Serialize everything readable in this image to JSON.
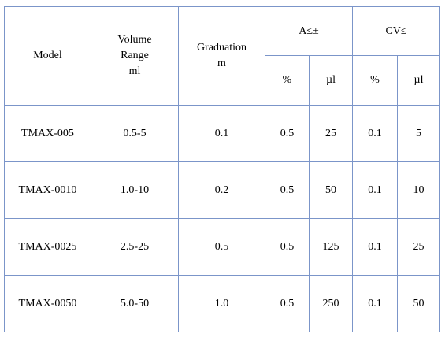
{
  "table": {
    "headers": {
      "model": "Model",
      "volume_range": "Volume\nRange\nml",
      "graduation": "Graduation\nm",
      "accuracy": "A≤±",
      "cv": "CV≤",
      "accuracy_pct": "%",
      "accuracy_ul": "µl",
      "cv_pct": "%",
      "cv_ul": "µl"
    },
    "rows": [
      {
        "model": "TMAX-005",
        "volume_range": "0.5-5",
        "graduation": "0.1",
        "a_pct": "0.5",
        "a_ul": "25",
        "cv_pct": "0.1",
        "cv_ul": "5"
      },
      {
        "model": "TMAX-0010",
        "volume_range": "1.0-10",
        "graduation": "0.2",
        "a_pct": "0.5",
        "a_ul": "50",
        "cv_pct": "0.1",
        "cv_ul": "10"
      },
      {
        "model": "TMAX-0025",
        "volume_range": "2.5-25",
        "graduation": "0.5",
        "a_pct": "0.5",
        "a_ul": "125",
        "cv_pct": "0.1",
        "cv_ul": "25"
      },
      {
        "model": "TMAX-0050",
        "volume_range": "5.0-50",
        "graduation": "1.0",
        "a_pct": "0.5",
        "a_ul": "250",
        "cv_pct": "0.1",
        "cv_ul": "50"
      }
    ]
  }
}
